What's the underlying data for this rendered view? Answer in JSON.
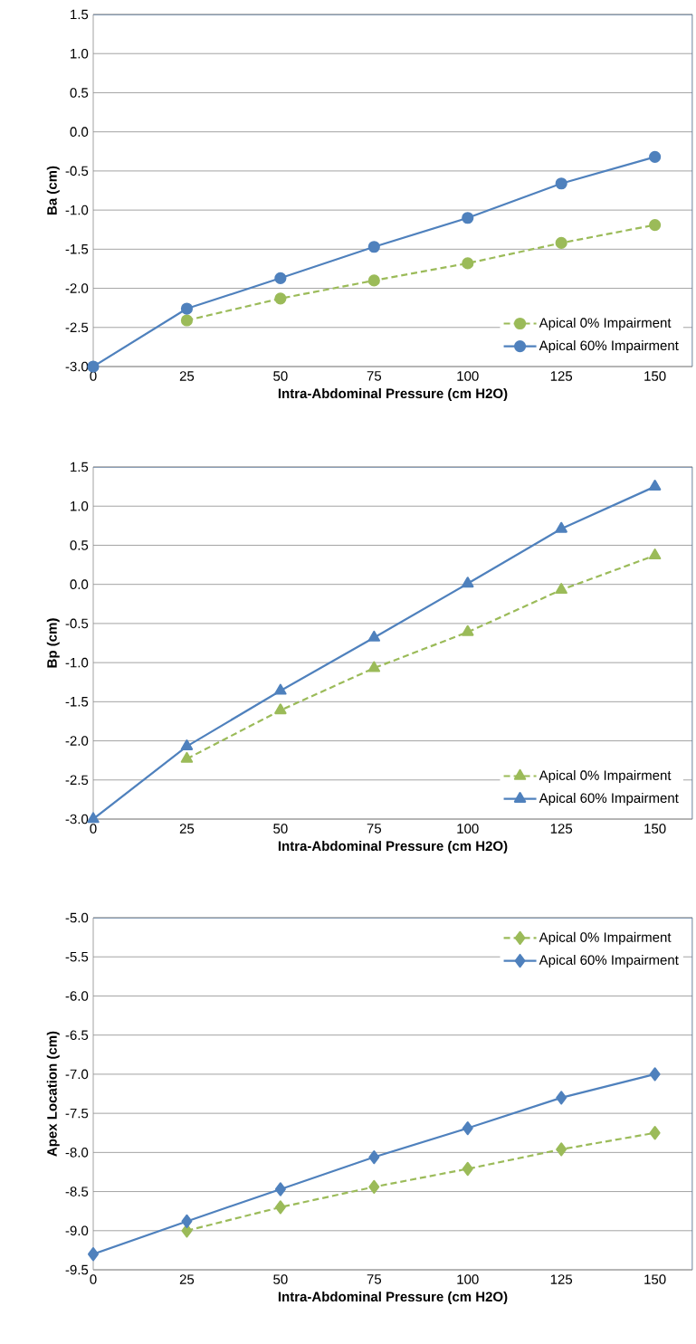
{
  "chart_data": [
    {
      "type": "line",
      "xlabel": "Intra-Abdominal Pressure (cm H2O)",
      "ylabel": "Ba (cm)",
      "x": [
        0,
        25,
        50,
        75,
        100,
        125,
        150
      ],
      "xlim": [
        0,
        160
      ],
      "xticks": [
        0,
        25,
        50,
        75,
        100,
        125,
        150
      ],
      "ylim": [
        -3,
        1.5
      ],
      "yticks": [
        {
          "value": -3,
          "label": "-3.0"
        },
        {
          "value": -2.5,
          "label": "-2.5"
        },
        {
          "value": -2,
          "label": "-2.0"
        },
        {
          "value": -1.5,
          "label": "-1.5"
        },
        {
          "value": -1,
          "label": "-1.0"
        },
        {
          "value": -0.5,
          "label": "-0.5"
        },
        {
          "value": 0,
          "label": "0.0"
        },
        {
          "value": 0.5,
          "label": "0.5"
        },
        {
          "value": 1,
          "label": "1.0"
        },
        {
          "value": 1.5,
          "label": "1.5"
        }
      ],
      "grid": "y",
      "legend": "bottom right",
      "marker": "circle",
      "series": [
        {
          "name": "Apical 0% Impairment",
          "color": "#9bbb59",
          "line_style": "dashed",
          "values": [
            null,
            -2.41,
            -2.13,
            -1.9,
            -1.68,
            -1.42,
            -1.19
          ]
        },
        {
          "name": "Apical 60% Impairment",
          "color": "#4f81bd",
          "line_style": "solid",
          "values": [
            -3.0,
            -2.26,
            -1.87,
            -1.47,
            -1.1,
            -0.66,
            -0.32
          ]
        }
      ]
    },
    {
      "type": "line",
      "xlabel": "Intra-Abdominal Pressure (cm H2O)",
      "ylabel": "Bp (cm)",
      "x": [
        0,
        25,
        50,
        75,
        100,
        125,
        150
      ],
      "xlim": [
        0,
        160
      ],
      "xticks": [
        0,
        25,
        50,
        75,
        100,
        125,
        150
      ],
      "ylim": [
        -3,
        1.5
      ],
      "yticks": [
        {
          "value": -3,
          "label": "-3.0"
        },
        {
          "value": -2.5,
          "label": "-2.5"
        },
        {
          "value": -2,
          "label": "-2.0"
        },
        {
          "value": -1.5,
          "label": "-1.5"
        },
        {
          "value": -1,
          "label": "-1.0"
        },
        {
          "value": -0.5,
          "label": "-0.5"
        },
        {
          "value": 0,
          "label": "0.0"
        },
        {
          "value": 0.5,
          "label": "0.5"
        },
        {
          "value": 1,
          "label": "1.0"
        },
        {
          "value": 1.5,
          "label": "1.5"
        }
      ],
      "grid": "y",
      "legend": "bottom right",
      "marker": "triangle",
      "series": [
        {
          "name": "Apical 0% Impairment",
          "color": "#9bbb59",
          "line_style": "dashed",
          "values": [
            null,
            -2.23,
            -1.61,
            -1.07,
            -0.61,
            -0.07,
            0.37
          ]
        },
        {
          "name": "Apical 60% Impairment",
          "color": "#4f81bd",
          "line_style": "solid",
          "values": [
            -3.0,
            -2.07,
            -1.36,
            -0.68,
            0.01,
            0.71,
            1.25
          ]
        }
      ]
    },
    {
      "type": "line",
      "xlabel": "Intra-Abdominal Pressure (cm H2O)",
      "ylabel": "Apex Location (cm)",
      "x": [
        0,
        25,
        50,
        75,
        100,
        125,
        150
      ],
      "xlim": [
        0,
        160
      ],
      "xticks": [
        0,
        25,
        50,
        75,
        100,
        125,
        150
      ],
      "ylim": [
        -9.5,
        -5
      ],
      "yticks": [
        {
          "value": -9.5,
          "label": "-9.5"
        },
        {
          "value": -9,
          "label": "-9.0"
        },
        {
          "value": -8.5,
          "label": "-8.5"
        },
        {
          "value": -8,
          "label": "-8.0"
        },
        {
          "value": -7.5,
          "label": "-7.5"
        },
        {
          "value": -7,
          "label": "-7.0"
        },
        {
          "value": -6.5,
          "label": "-6.5"
        },
        {
          "value": -6,
          "label": "-6.0"
        },
        {
          "value": -5.5,
          "label": "-5.5"
        },
        {
          "value": -5,
          "label": "-5.0"
        }
      ],
      "grid": "y",
      "legend": "top right",
      "marker": "diamond",
      "series": [
        {
          "name": "Apical 0% Impairment",
          "color": "#9bbb59",
          "line_style": "dashed",
          "values": [
            null,
            -9.0,
            -8.7,
            -8.44,
            -8.21,
            -7.96,
            -7.75
          ]
        },
        {
          "name": "Apical 60% Impairment",
          "color": "#4f81bd",
          "line_style": "solid",
          "values": [
            -9.3,
            -8.88,
            -8.47,
            -8.06,
            -7.69,
            -7.3,
            -7.0
          ]
        }
      ]
    }
  ]
}
